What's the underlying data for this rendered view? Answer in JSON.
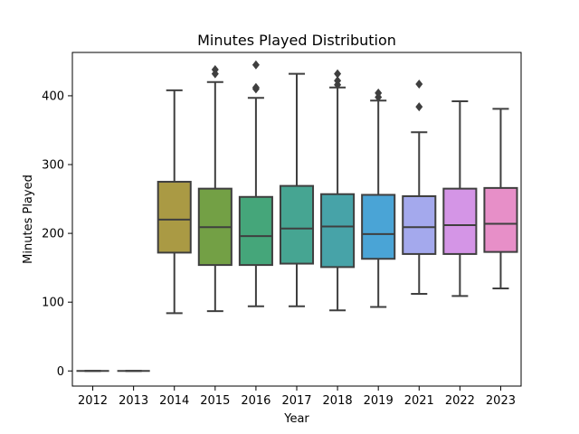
{
  "chart_data": {
    "type": "boxplot",
    "title": "Minutes Played Distribution",
    "xlabel": "Year",
    "ylabel": "Minutes Played",
    "ylim": [
      -22,
      463
    ],
    "yticks": [
      0,
      100,
      200,
      300,
      400
    ],
    "grid": false,
    "legend": "none",
    "categories": [
      "2012",
      "2013",
      "2014",
      "2015",
      "2016",
      "2017",
      "2018",
      "2019",
      "2021",
      "2022",
      "2023"
    ],
    "boxes": [
      {
        "year": "2012",
        "min": 0,
        "q1": 0,
        "median": 0,
        "q3": 0,
        "max": 0,
        "outliers": [],
        "color": "#b94e45"
      },
      {
        "year": "2013",
        "min": 0,
        "q1": 0,
        "median": 0,
        "q3": 0,
        "max": 0,
        "outliers": [],
        "color": "#b5683e"
      },
      {
        "year": "2014",
        "min": 84,
        "q1": 172,
        "median": 220,
        "q3": 275,
        "max": 408,
        "outliers": [],
        "color": "#aa9a44"
      },
      {
        "year": "2015",
        "min": 87,
        "q1": 154,
        "median": 209,
        "q3": 265,
        "max": 420,
        "outliers": [
          432,
          438
        ],
        "color": "#73a045"
      },
      {
        "year": "2016",
        "min": 94,
        "q1": 154,
        "median": 196,
        "q3": 253,
        "max": 397,
        "outliers": [
          410,
          412,
          445
        ],
        "color": "#45a67a"
      },
      {
        "year": "2017",
        "min": 94,
        "q1": 156,
        "median": 207,
        "q3": 269,
        "max": 432,
        "outliers": [],
        "color": "#46a592"
      },
      {
        "year": "2018",
        "min": 88,
        "q1": 151,
        "median": 210,
        "q3": 257,
        "max": 412,
        "outliers": [
          416,
          422,
          432
        ],
        "color": "#47a3a8"
      },
      {
        "year": "2019",
        "min": 93,
        "q1": 163,
        "median": 199,
        "q3": 256,
        "max": 393,
        "outliers": [
          398,
          404
        ],
        "color": "#4aa4d6"
      },
      {
        "year": "2021",
        "min": 112,
        "q1": 170,
        "median": 209,
        "q3": 254,
        "max": 347,
        "outliers": [
          384,
          417
        ],
        "color": "#a4a9ed"
      },
      {
        "year": "2022",
        "min": 109,
        "q1": 170,
        "median": 212,
        "q3": 265,
        "max": 392,
        "outliers": [],
        "color": "#d495e6"
      },
      {
        "year": "2023",
        "min": 120,
        "q1": 173,
        "median": 214,
        "q3": 266,
        "max": 381,
        "outliers": [],
        "color": "#e78fc8"
      }
    ]
  }
}
